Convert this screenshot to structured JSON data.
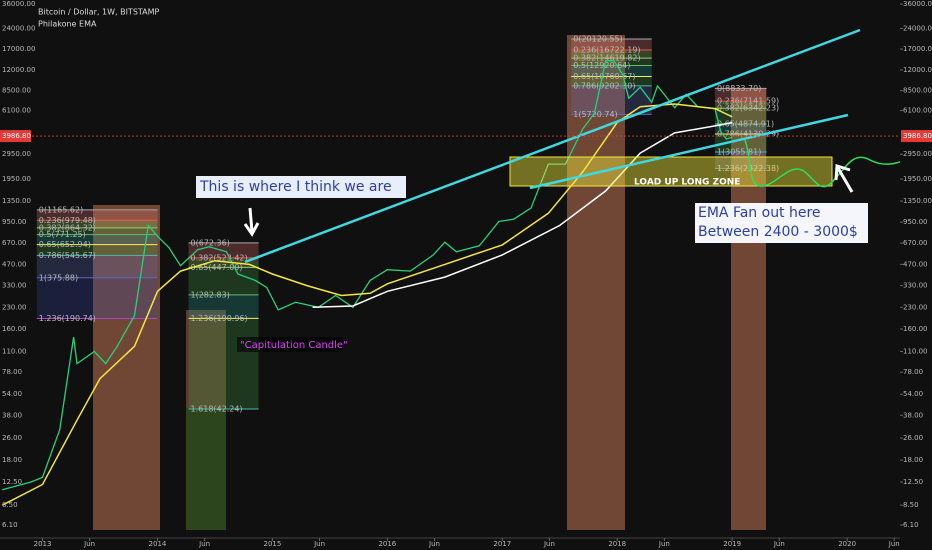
{
  "chart_data": {
    "type": "line",
    "title": "Bitcoin / Dollar, 1W, BITSTAMP",
    "subtitle": "Philakone EMA",
    "log_scale": true,
    "xlim": [
      2012.63,
      2020.46
    ],
    "xticks": [
      2013,
      {
        "value": 2013.41,
        "label": "Jun"
      },
      2014,
      {
        "value": 2014.41,
        "label": "Jun"
      },
      2015,
      {
        "value": 2015.41,
        "label": "Jun"
      },
      2016,
      {
        "value": 2016.41,
        "label": "Jun"
      },
      2017,
      {
        "value": 2017.41,
        "label": "Jun"
      },
      2018,
      {
        "value": 2018.41,
        "label": "Jun"
      },
      2019,
      {
        "value": 2019.41,
        "label": "Jun"
      },
      2020,
      {
        "value": 2020.41,
        "label": "Jun"
      }
    ],
    "ylim": [
      5,
      38500
    ],
    "yticks": [
      {
        "value": 36000,
        "label": "36000.00"
      },
      {
        "value": 24000,
        "label": "24000.00"
      },
      {
        "value": 17000,
        "label": "17000.00"
      },
      {
        "value": 12000,
        "label": "12000.00"
      },
      {
        "value": 8500,
        "label": "8500.00"
      },
      {
        "value": 6100,
        "label": "6100.00"
      },
      {
        "value": 2950,
        "label": "2950.00"
      },
      {
        "value": 1950,
        "label": "1950.00"
      },
      {
        "value": 1350,
        "label": "1350.00"
      },
      {
        "value": 950,
        "label": "950.00"
      },
      {
        "value": 670,
        "label": "670.00"
      },
      {
        "value": 470,
        "label": "470.00"
      },
      {
        "value": 330,
        "label": "330.00"
      },
      {
        "value": 230,
        "label": "230.00"
      },
      {
        "value": 160,
        "label": "160.00"
      },
      {
        "value": 110,
        "label": "110.00"
      },
      {
        "value": 78,
        "label": "78.00"
      },
      {
        "value": 54,
        "label": "54.00"
      },
      {
        "value": 38,
        "label": "38.00"
      },
      {
        "value": 26,
        "label": "26.00"
      },
      {
        "value": 18,
        "label": "18.00"
      },
      {
        "value": 12.5,
        "label": "12.50"
      },
      {
        "value": 8.5,
        "label": "8.50"
      },
      {
        "value": 6.1,
        "label": "6.10"
      }
    ],
    "last_price": {
      "value": 3986.8,
      "label": "3986.80",
      "color": "#e53935"
    },
    "series": [
      {
        "color": "#26d07c",
        "x": [
          2012.65,
          2012.9,
          2013.0,
          2013.15,
          2013.27,
          2013.3,
          2013.45,
          2013.55,
          2013.65,
          2013.8,
          2013.92,
          2014.0,
          2014.1,
          2014.2,
          2014.35,
          2014.45,
          2014.6,
          2014.7,
          2014.85,
          2014.95,
          2015.05,
          2015.2,
          2015.4,
          2015.55,
          2015.7,
          2015.85,
          2016.0,
          2016.2,
          2016.4,
          2016.5,
          2016.6,
          2016.8,
          2016.97,
          2017.1,
          2017.25,
          2017.4,
          2017.55,
          2017.7,
          2017.8,
          2017.9,
          2017.97,
          2018.05,
          2018.1,
          2018.2,
          2018.3,
          2018.35,
          2018.5,
          2018.6,
          2018.7,
          2018.85,
          2018.9,
          2018.95,
          2019.0
        ],
        "values": [
          11,
          12.5,
          13.5,
          30,
          140,
          90,
          110,
          90,
          120,
          200,
          900,
          750,
          620,
          460,
          600,
          630,
          580,
          400,
          360,
          320,
          220,
          250,
          230,
          280,
          230,
          360,
          430,
          420,
          550,
          680,
          580,
          640,
          960,
          1000,
          1200,
          2500,
          2500,
          4500,
          5800,
          14000,
          14000,
          11000,
          7500,
          9000,
          7000,
          9200,
          6400,
          8000,
          6500,
          6300,
          4300,
          3800,
          3900
        ]
      },
      {
        "color": "#f5e642",
        "x": [
          2012.65,
          2013.0,
          2013.3,
          2013.5,
          2013.8,
          2014.0,
          2014.2,
          2014.5,
          2014.8,
          2015.0,
          2015.3,
          2015.6,
          2015.85,
          2016.0,
          2016.5,
          2017.0,
          2017.4,
          2017.7,
          2018.0,
          2018.2,
          2018.5,
          2018.85,
          2019.0
        ],
        "values": [
          8.5,
          12,
          35,
          70,
          120,
          300,
          420,
          500,
          470,
          400,
          330,
          280,
          290,
          340,
          470,
          650,
          1100,
          2200,
          5000,
          6500,
          6800,
          6300,
          5500
        ]
      },
      {
        "color": "#ffffff",
        "x": [
          2015.35,
          2015.7,
          2016.0,
          2016.5,
          2017.0,
          2017.5,
          2017.9,
          2018.2,
          2018.5,
          2018.9,
          2019.0
        ],
        "values": [
          230,
          235,
          300,
          380,
          550,
          900,
          1600,
          3000,
          4200,
          4800,
          5000
        ]
      }
    ],
    "fibs": [
      {
        "x": [
          2012.95,
          2014.0
        ],
        "levels": [
          {
            "label": "0(1165.62)",
            "value": 1165.62
          },
          {
            "label": "0.236(979.48)",
            "value": 979.48
          },
          {
            "label": "0.382(864.32)",
            "value": 864.32
          },
          {
            "label": "0.5(771.25)",
            "value": 771.25
          },
          {
            "label": "0.65(652.94)",
            "value": 652.94
          },
          {
            "label": "0.786(545.67)",
            "value": 545.67
          },
          {
            "label": "1(375.88)",
            "value": 375.88
          },
          {
            "label": "1.236(190.74)",
            "value": 190.74
          }
        ]
      },
      {
        "x": [
          2014.27,
          2014.88
        ],
        "levels": [
          {
            "label": "0(672.36)",
            "value": 672.36
          },
          {
            "label": "0.382(523.42)",
            "value": 523.42
          },
          {
            "label": "0.65(447.00)",
            "value": 447.0
          },
          {
            "label": "1(282.83)",
            "value": 282.83
          },
          {
            "label": "1.236(190.96)",
            "value": 190.96
          },
          {
            "label": "1.618(42.24)",
            "value": 42.24
          }
        ]
      },
      {
        "x": [
          2017.6,
          2018.3
        ],
        "levels": [
          {
            "label": "0(20120.55)",
            "value": 20120.55
          },
          {
            "label": "0.236(16722.19)",
            "value": 16722.19
          },
          {
            "label": "0.382(14619.82)",
            "value": 14619.82
          },
          {
            "label": "0.5(12920.64)",
            "value": 12920.64
          },
          {
            "label": "0.65(10760.67)",
            "value": 10760.67
          },
          {
            "label": "0.786(9202.30)",
            "value": 9202.3
          },
          {
            "label": "1(5720.74)",
            "value": 5720.74
          }
        ]
      },
      {
        "x": [
          2018.85,
          2019.3
        ],
        "levels": [
          {
            "label": "0(8833.70)",
            "value": 8833.7
          },
          {
            "label": "0.236(7141.59)",
            "value": 7141.59
          },
          {
            "label": "0.382(6342.23)",
            "value": 6342.23
          },
          {
            "label": "0.65(4874.91)",
            "value": 4874.91
          },
          {
            "label": "0.786(4130.29)",
            "value": 4130.29
          },
          {
            "label": "1(3055.81)",
            "value": 3055.81
          },
          {
            "label": "1.236(2322.38)",
            "value": 2322.38
          }
        ]
      }
    ],
    "annotations": [
      "This is where I think we are",
      "\"Capitulation Candle\"",
      "LOAD UP LONG ZONE",
      "EMA Fan out here",
      "Between 2400 - 3000$"
    ]
  }
}
